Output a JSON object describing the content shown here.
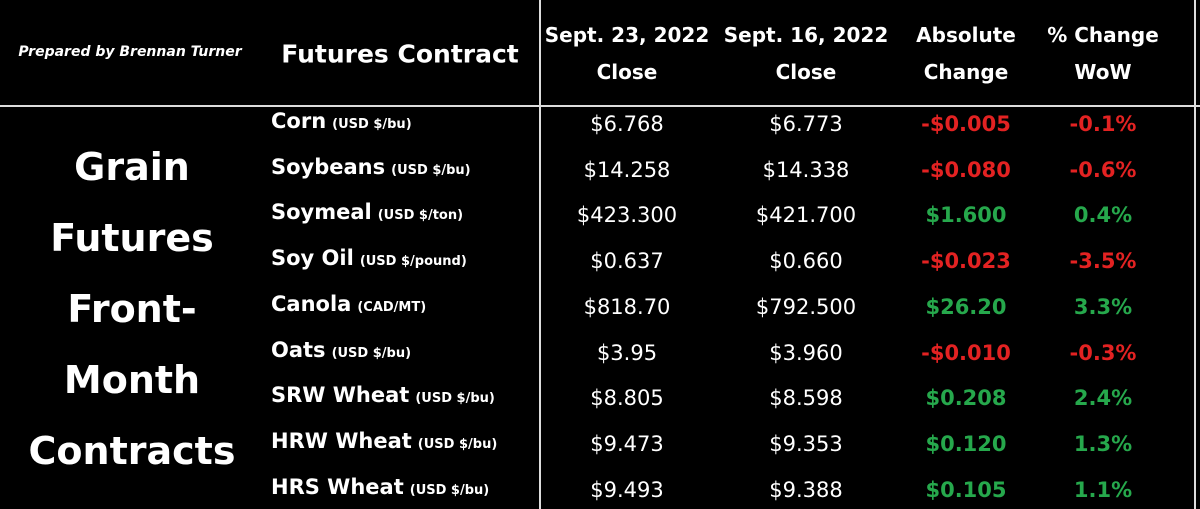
{
  "header": {
    "prepared_by": "Prepared by Brennan Turner",
    "columns": [
      [
        "Futures Contract"
      ],
      [
        "Sept. 23, 2022",
        "Close"
      ],
      [
        "Sept. 16, 2022",
        "Close"
      ],
      [
        "Absolute",
        "Change"
      ],
      [
        "% Change",
        "WoW"
      ]
    ]
  },
  "side_label": [
    "Grain",
    "Futures",
    "Front-",
    "Month",
    "Contracts"
  ],
  "table": {
    "rows": [
      [
        "Corn",
        "(USD $/bu)",
        "$6.768",
        "$6.773",
        "-$0.005",
        "-0.1%"
      ],
      [
        "Soybeans",
        "(USD $/bu)",
        "$14.258",
        "$14.338",
        "-$0.080",
        "-0.6%"
      ],
      [
        "Soymeal",
        "(USD $/ton)",
        "$423.300",
        "$421.700",
        "$1.600",
        "0.4%"
      ],
      [
        "Soy Oil",
        "(USD $/pound)",
        "$0.637",
        "$0.660",
        "-$0.023",
        "-3.5%"
      ],
      [
        "Canola",
        "(CAD/MT)",
        "$818.70",
        "$792.500",
        "$26.20",
        "3.3%"
      ],
      [
        "Oats",
        "(USD $/bu)",
        "$3.95",
        "$3.960",
        "-$0.010",
        "-0.3%"
      ],
      [
        "SRW Wheat",
        "(USD $/bu)",
        "$8.805",
        "$8.598",
        "$0.208",
        "2.4%"
      ],
      [
        "HRW Wheat",
        "(USD $/bu)",
        "$9.473",
        "$9.353",
        "$0.120",
        "1.3%"
      ],
      [
        "HRS Wheat",
        "(USD $/bu)",
        "$9.493",
        "$9.388",
        "$0.105",
        "1.1%"
      ]
    ]
  }
}
